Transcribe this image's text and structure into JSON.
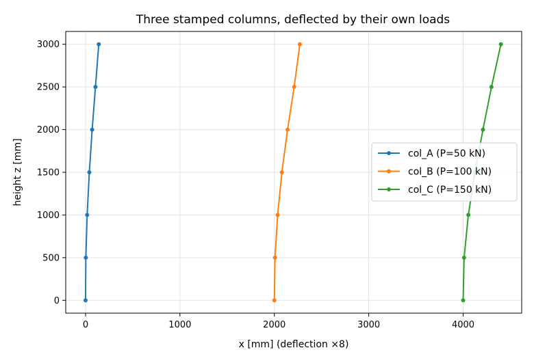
{
  "chart_data": {
    "type": "line",
    "title": "Three stamped columns, deflected by their own loads",
    "xlabel": "x  [mm]  (deflection ×8)",
    "ylabel": "height z  [mm]",
    "xlim": [
      -210,
      4620
    ],
    "ylim": [
      -150,
      3150
    ],
    "xticks": [
      0,
      1000,
      2000,
      3000,
      4000
    ],
    "yticks": [
      0,
      500,
      1000,
      1500,
      2000,
      2500,
      3000
    ],
    "grid": true,
    "legend_position": "center-right",
    "series": [
      {
        "name": "col_A  (P=50 kN)",
        "color": "#1f77b4",
        "points": [
          [
            0,
            0
          ],
          [
            3,
            500
          ],
          [
            17,
            1000
          ],
          [
            40,
            1500
          ],
          [
            70,
            2000
          ],
          [
            105,
            2500
          ],
          [
            140,
            3000
          ]
        ]
      },
      {
        "name": "col_B  (P=100 kN)",
        "color": "#ff7f0e",
        "points": [
          [
            2000,
            0
          ],
          [
            2007,
            500
          ],
          [
            2035,
            1000
          ],
          [
            2080,
            1500
          ],
          [
            2140,
            2000
          ],
          [
            2210,
            2500
          ],
          [
            2270,
            3000
          ]
        ]
      },
      {
        "name": "col_C  (P=150 kN)",
        "color": "#2ca02c",
        "points": [
          [
            4000,
            0
          ],
          [
            4010,
            500
          ],
          [
            4055,
            1000
          ],
          [
            4125,
            1500
          ],
          [
            4210,
            2000
          ],
          [
            4300,
            2500
          ],
          [
            4400,
            3000
          ]
        ]
      }
    ]
  }
}
